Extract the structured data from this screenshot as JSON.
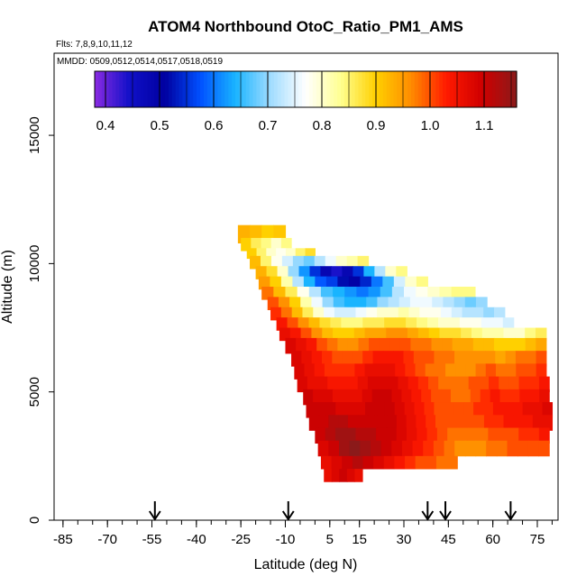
{
  "chart_data": {
    "type": "heatmap",
    "title": "ATOM4 Northbound OtoC_Ratio_PM1_AMS",
    "subtitle": "Flts: 7,8,9,10,11,12",
    "annotation": "MMDD: 0509,0512,0514,0517,0518,0519",
    "xlabel": "Latitude (deg N)",
    "ylabel": "Altitude (m)",
    "xlim": [
      -88,
      82
    ],
    "ylim": [
      0,
      18200
    ],
    "x_ticks": [
      -85,
      -70,
      -55,
      -40,
      -25,
      -10,
      5,
      15,
      30,
      45,
      60,
      75
    ],
    "x_minor_step": 5,
    "y_ticks": [
      0,
      5000,
      10000,
      15000
    ],
    "colorbar": {
      "ticks": [
        0.4,
        0.5,
        0.6,
        0.7,
        0.8,
        0.9,
        1.0,
        1.1
      ],
      "range": [
        0.38,
        1.16
      ],
      "colors": [
        "#8a2be2",
        "#1010c8",
        "#0000a0",
        "#0050ff",
        "#19b4ff",
        "#a0dcff",
        "#ffffff",
        "#ffff90",
        "#ffd000",
        "#ff8c00",
        "#ff1a00",
        "#d00000",
        "#8b1a1a"
      ]
    },
    "flight_markers_lat": [
      -54,
      -9,
      38,
      44,
      66
    ],
    "rows": [
      {
        "alt": [
          10800,
          11500
        ],
        "lat": [
          -26,
          -10
        ],
        "values": [
          0.93,
          0.92,
          0.9,
          0.91
        ]
      },
      {
        "alt": [
          10500,
          11000
        ],
        "lat": [
          -25,
          -8
        ],
        "values": [
          0.9,
          0.86,
          0.84,
          0.8,
          0.84
        ]
      },
      {
        "alt": [
          10200,
          10600
        ],
        "lat": [
          -23,
          0
        ],
        "values": [
          0.9,
          0.85,
          0.8,
          0.78,
          0.8,
          0.85,
          0.88
        ]
      },
      {
        "alt": [
          9800,
          10300
        ],
        "lat": [
          -22,
          18
        ],
        "values": [
          0.92,
          0.85,
          0.78,
          0.74,
          0.7,
          0.68,
          0.72,
          0.76,
          0.8,
          0.82,
          0.85
        ]
      },
      {
        "alt": [
          9400,
          9900
        ],
        "lat": [
          -20,
          31
        ],
        "values": [
          0.93,
          0.88,
          0.8,
          0.7,
          0.62,
          0.55,
          0.48,
          0.44,
          0.48,
          0.55,
          0.64,
          0.72,
          0.8,
          0.84
        ]
      },
      {
        "alt": [
          9000,
          9500
        ],
        "lat": [
          -19,
          38
        ],
        "values": [
          0.95,
          0.9,
          0.82,
          0.72,
          0.64,
          0.58,
          0.56,
          0.52,
          0.5,
          0.54,
          0.6,
          0.66,
          0.74,
          0.8,
          0.84
        ]
      },
      {
        "alt": [
          8600,
          9100
        ],
        "lat": [
          -18,
          54
        ],
        "values": [
          0.98,
          0.92,
          0.86,
          0.78,
          0.72,
          0.66,
          0.64,
          0.62,
          0.6,
          0.62,
          0.66,
          0.72,
          0.76,
          0.78,
          0.8,
          0.82,
          0.84,
          0.84
        ]
      },
      {
        "alt": [
          8200,
          8700
        ],
        "lat": [
          -16,
          58
        ],
        "values": [
          1.0,
          0.96,
          0.9,
          0.82,
          0.76,
          0.7,
          0.66,
          0.64,
          0.64,
          0.66,
          0.7,
          0.72,
          0.74,
          0.76,
          0.76,
          0.74,
          0.72,
          0.7,
          0.68,
          0.7
        ]
      },
      {
        "alt": [
          7800,
          8300
        ],
        "lat": [
          -15,
          64
        ],
        "values": [
          1.02,
          0.98,
          0.92,
          0.86,
          0.8,
          0.76,
          0.74,
          0.74,
          0.76,
          0.78,
          0.8,
          0.8,
          0.82,
          0.8,
          0.78,
          0.78,
          0.76,
          0.74,
          0.72,
          0.72,
          0.7,
          0.72
        ]
      },
      {
        "alt": [
          7400,
          7900
        ],
        "lat": [
          -13,
          67
        ],
        "values": [
          1.04,
          1.0,
          0.96,
          0.92,
          0.88,
          0.86,
          0.84,
          0.84,
          0.86,
          0.86,
          0.88,
          0.88,
          0.86,
          0.84,
          0.82,
          0.8,
          0.8,
          0.78,
          0.78,
          0.76,
          0.76,
          0.74
        ]
      },
      {
        "alt": [
          7000,
          7500
        ],
        "lat": [
          -12,
          78
        ],
        "values": [
          1.06,
          1.04,
          1.0,
          0.96,
          0.92,
          0.9,
          0.9,
          0.92,
          0.94,
          0.94,
          0.96,
          0.96,
          0.94,
          0.92,
          0.9,
          0.88,
          0.88,
          0.86,
          0.84,
          0.82,
          0.82,
          0.8,
          0.8,
          0.84,
          0.86
        ]
      },
      {
        "alt": [
          6500,
          7100
        ],
        "lat": [
          -10,
          78
        ],
        "values": [
          1.08,
          1.06,
          1.04,
          1.0,
          0.98,
          0.96,
          0.96,
          0.98,
          1.0,
          1.0,
          1.0,
          1.0,
          0.98,
          0.98,
          0.96,
          0.96,
          0.94,
          0.94,
          0.92,
          0.92,
          0.9,
          0.9,
          0.9,
          0.92,
          0.94
        ]
      },
      {
        "alt": [
          6000,
          6600
        ],
        "lat": [
          -8,
          78
        ],
        "values": [
          1.08,
          1.06,
          1.04,
          1.02,
          1.0,
          1.0,
          1.0,
          1.02,
          1.04,
          1.04,
          1.04,
          1.02,
          1.0,
          1.0,
          0.98,
          0.98,
          0.96,
          0.96,
          0.96,
          0.96,
          0.94,
          0.96,
          0.98,
          0.98,
          1.0
        ]
      },
      {
        "alt": [
          5500,
          6100
        ],
        "lat": [
          -7,
          78
        ],
        "values": [
          1.08,
          1.06,
          1.04,
          1.02,
          1.02,
          1.02,
          1.04,
          1.06,
          1.06,
          1.06,
          1.04,
          1.02,
          1.0,
          0.98,
          0.98,
          0.96,
          0.96,
          0.96,
          0.98,
          1.0,
          0.98,
          0.98,
          1.0,
          1.0,
          1.02
        ]
      },
      {
        "alt": [
          5000,
          5600
        ],
        "lat": [
          -6,
          79
        ],
        "values": [
          1.08,
          1.06,
          1.06,
          1.04,
          1.04,
          1.04,
          1.06,
          1.08,
          1.08,
          1.08,
          1.06,
          1.04,
          1.02,
          1.0,
          0.98,
          0.98,
          0.98,
          1.0,
          1.0,
          1.02,
          1.0,
          1.0,
          1.02,
          1.02,
          1.04
        ]
      },
      {
        "alt": [
          4500,
          5100
        ],
        "lat": [
          -4,
          79
        ],
        "values": [
          1.1,
          1.08,
          1.08,
          1.06,
          1.06,
          1.06,
          1.08,
          1.1,
          1.1,
          1.08,
          1.06,
          1.04,
          1.02,
          1.0,
          1.0,
          0.98,
          0.98,
          1.0,
          1.02,
          1.04,
          1.02,
          1.02,
          1.04,
          1.04,
          1.06
        ]
      },
      {
        "alt": [
          4000,
          4600
        ],
        "lat": [
          -3,
          80
        ],
        "values": [
          1.1,
          1.1,
          1.1,
          1.08,
          1.08,
          1.08,
          1.1,
          1.1,
          1.1,
          1.08,
          1.06,
          1.04,
          1.02,
          1.0,
          1.0,
          1.0,
          1.0,
          1.02,
          1.02,
          1.04,
          1.04,
          1.04,
          1.06,
          1.06,
          1.08
        ]
      },
      {
        "alt": [
          3500,
          4100
        ],
        "lat": [
          -2,
          80
        ],
        "values": [
          1.1,
          1.1,
          1.12,
          1.12,
          1.1,
          1.1,
          1.1,
          1.1,
          1.1,
          1.08,
          1.06,
          1.04,
          1.02,
          1.0,
          1.0,
          1.0,
          1.0,
          1.0,
          1.02,
          1.02,
          1.04,
          1.04,
          1.04,
          1.06,
          1.06
        ]
      },
      {
        "alt": [
          3000,
          3600
        ],
        "lat": [
          0,
          79
        ],
        "values": [
          1.1,
          1.12,
          1.14,
          1.14,
          1.12,
          1.12,
          1.1,
          1.1,
          1.08,
          1.06,
          1.04,
          1.02,
          1.0,
          0.98,
          0.98,
          0.98,
          0.98,
          1.0,
          1.0,
          1.0,
          1.02,
          1.02,
          1.04
        ]
      },
      {
        "alt": [
          2500,
          3100
        ],
        "lat": [
          1,
          79
        ],
        "values": [
          1.08,
          1.1,
          1.14,
          1.16,
          1.14,
          1.12,
          1.1,
          1.08,
          1.06,
          1.04,
          1.02,
          1.0,
          0.98,
          0.96,
          0.96,
          0.96,
          0.98,
          0.98,
          1.0,
          1.0,
          1.0,
          1.0
        ]
      },
      {
        "alt": [
          2000,
          2500
        ],
        "lat": [
          2,
          48
        ],
        "values": [
          1.06,
          1.08,
          1.1,
          1.12,
          1.1,
          1.08,
          1.06,
          1.04,
          1.02,
          1.0,
          1.0,
          0.98,
          0.98
        ]
      },
      {
        "alt": [
          1500,
          2000
        ],
        "lat": [
          3,
          16
        ],
        "values": [
          1.06,
          1.08,
          1.1,
          1.08,
          1.06
        ]
      }
    ]
  }
}
